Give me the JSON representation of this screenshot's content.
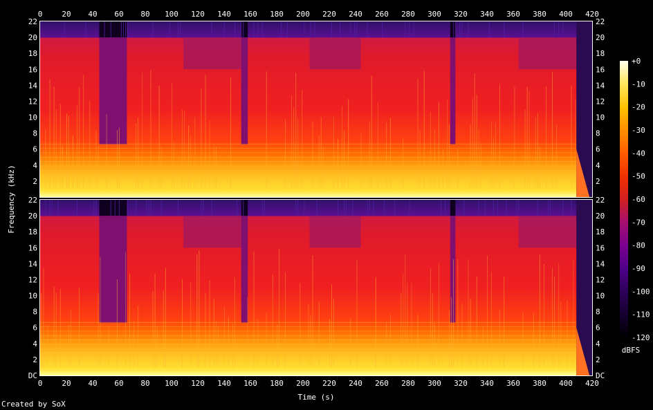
{
  "chart_data": {
    "type": "heatmap",
    "title": "",
    "xlabel": "Time (s)",
    "ylabel": "Frequency (kHz)",
    "xlim": [
      0,
      420
    ],
    "ylim": [
      0,
      22
    ],
    "x_ticks": [
      "0",
      "20",
      "40",
      "60",
      "80",
      "100",
      "120",
      "140",
      "160",
      "180",
      "200",
      "220",
      "240",
      "260",
      "280",
      "300",
      "320",
      "340",
      "360",
      "380",
      "400",
      "420"
    ],
    "y_ticks": [
      "DC",
      "2",
      "4",
      "6",
      "8",
      "10",
      "12",
      "14",
      "16",
      "18",
      "20",
      "22"
    ],
    "channels": 2,
    "colorbar": {
      "label": "dBFS",
      "range": [
        -120,
        0
      ],
      "ticks": [
        "+0",
        "-10",
        "-20",
        "-30",
        "-40",
        "-50",
        "-60",
        "-70",
        "-80",
        "-90",
        "-100",
        "-110",
        "-120"
      ],
      "colors": [
        "#000000",
        "#1a0033",
        "#3d0066",
        "#66008c",
        "#8c1a66",
        "#b32626",
        "#e60000",
        "#ff3300",
        "#ff6600",
        "#ff9900",
        "#ffcc00",
        "#ffee66",
        "#ffffee"
      ]
    },
    "quiet_sections_s": [
      [
        45,
        66
      ],
      [
        153,
        158
      ],
      [
        312,
        316
      ]
    ],
    "lowpass_sections_s": [
      [
        109,
        153
      ],
      [
        205,
        244
      ],
      [
        364,
        408
      ]
    ],
    "end_fade_s": [
      408,
      420
    ]
  },
  "footer": {
    "credit": "Created by SoX"
  }
}
